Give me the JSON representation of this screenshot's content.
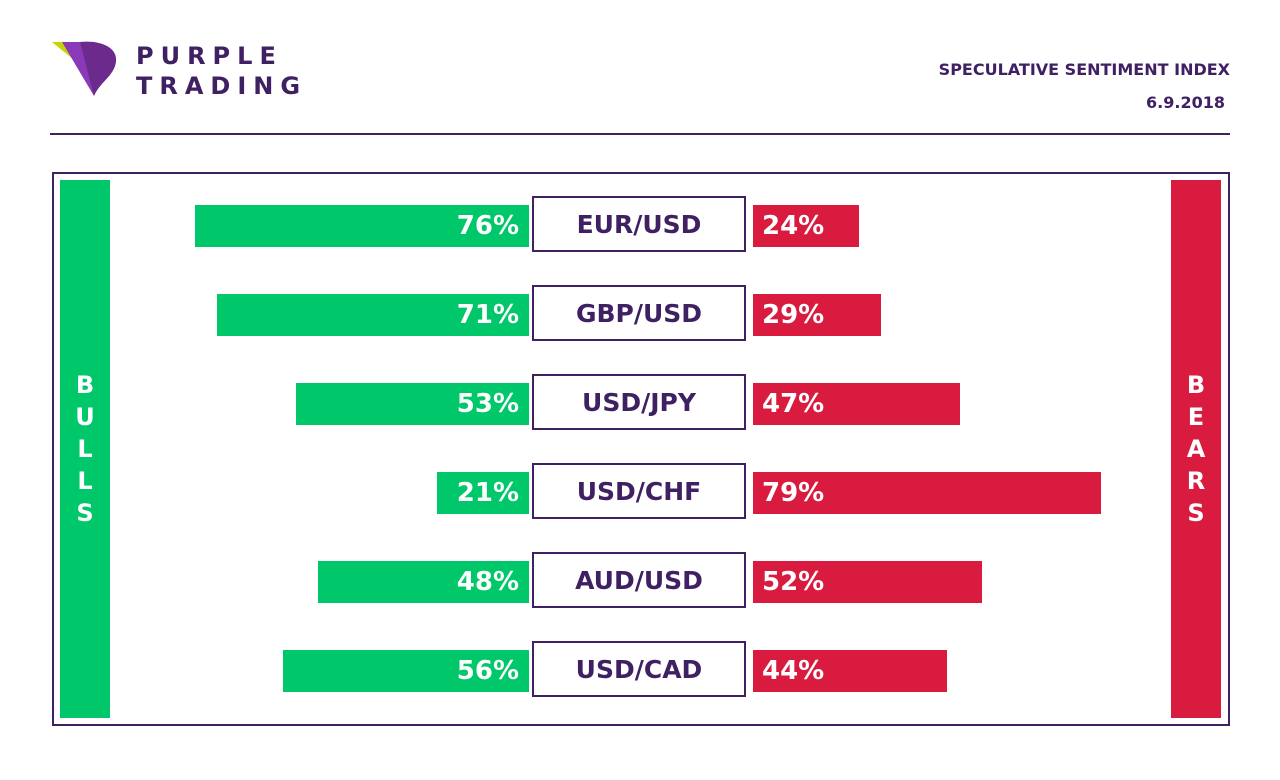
{
  "brand": {
    "line1": "PURPLE",
    "line2": "TRADING",
    "colors": {
      "purple": "#3f2163",
      "logo_green": "#c8d400",
      "logo_purple": "#6b2a8c"
    }
  },
  "header": {
    "title": "SPECULATIVE SENTIMENT INDEX",
    "date": "6.9.2018"
  },
  "sides": {
    "bulls": "BULLS",
    "bears": "BEARS"
  },
  "colors": {
    "bulls": "#00c86a",
    "bears": "#d81b3f",
    "frame": "#3f2163"
  },
  "chart_data": {
    "type": "bar",
    "orientation": "horizontal-diverging",
    "categories": [
      "EUR/USD",
      "GBP/USD",
      "USD/JPY",
      "USD/CHF",
      "AUD/USD",
      "USD/CAD"
    ],
    "series": [
      {
        "name": "BULLS",
        "values": [
          76,
          71,
          53,
          21,
          48,
          56
        ],
        "labels": [
          "76%",
          "71%",
          "53%",
          "21%",
          "48%",
          "56%"
        ]
      },
      {
        "name": "BEARS",
        "values": [
          24,
          29,
          47,
          79,
          52,
          44
        ],
        "labels": [
          "24%",
          "29%",
          "47%",
          "79%",
          "52%",
          "44%"
        ]
      }
    ],
    "xlim": [
      0,
      100
    ],
    "grid": false,
    "legend": "none"
  }
}
